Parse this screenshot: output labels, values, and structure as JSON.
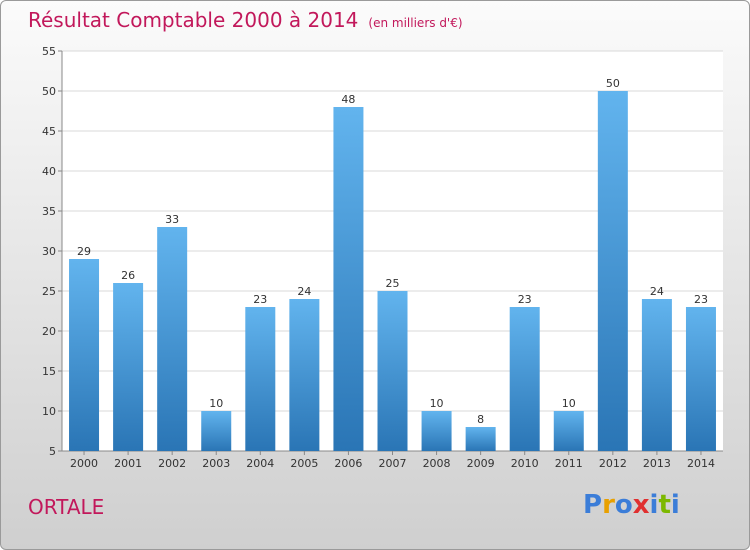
{
  "title": "Résultat Comptable 2000 à 2014",
  "subtitle": "(en milliers d'€)",
  "commune": "ORTALE",
  "logo": {
    "letters": [
      "P",
      "r",
      "o",
      "x",
      "i",
      "t",
      "i"
    ],
    "colors": [
      "#3b7dd8",
      "#e8a000",
      "#3b7dd8",
      "#e03030",
      "#3b7dd8",
      "#7cb800",
      "#3b7dd8"
    ]
  },
  "colors": {
    "bar_top": "#62b4ee",
    "bar_bottom": "#2a75b5",
    "title": "#c2185b"
  },
  "chart_data": {
    "type": "bar",
    "title": "Résultat Comptable 2000 à 2014",
    "subtitle": "(en milliers d'€)",
    "categories": [
      "2000",
      "2001",
      "2002",
      "2003",
      "2004",
      "2005",
      "2006",
      "2007",
      "2008",
      "2009",
      "2010",
      "2011",
      "2012",
      "2013",
      "2014"
    ],
    "values": [
      29,
      26,
      33,
      10,
      23,
      24,
      48,
      25,
      10,
      8,
      23,
      10,
      50,
      24,
      23
    ],
    "ylim": [
      5,
      55
    ],
    "yticks": [
      5,
      10,
      15,
      20,
      25,
      30,
      35,
      40,
      45,
      50,
      55
    ],
    "grid": true,
    "xlabel": "",
    "ylabel": ""
  }
}
